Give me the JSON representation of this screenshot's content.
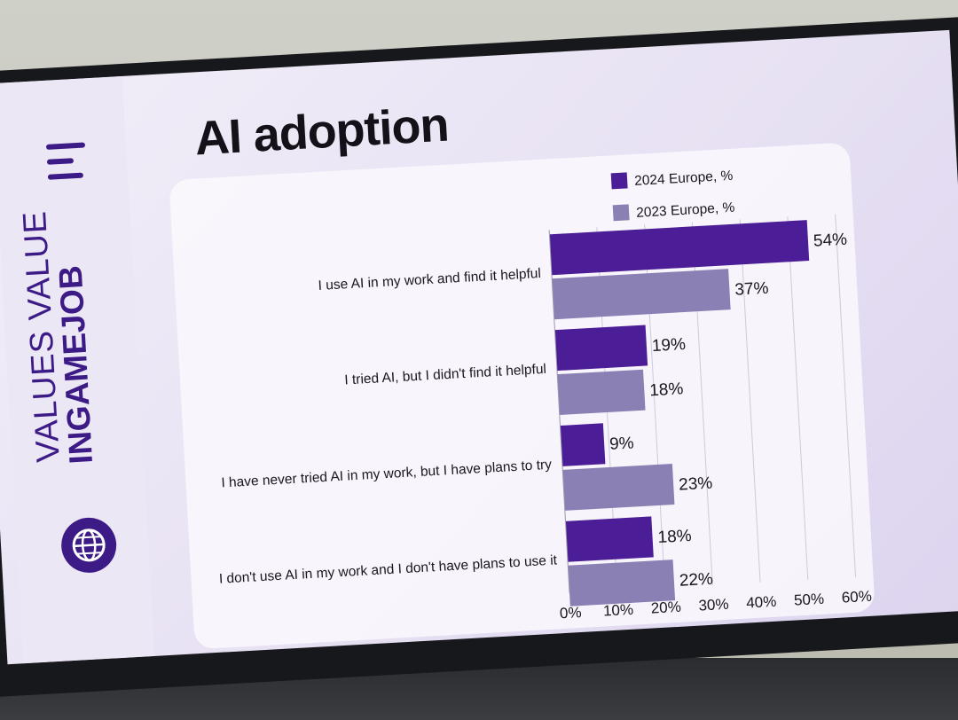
{
  "slide": {
    "title": "AI adoption"
  },
  "brand": {
    "line1": "VALUES VALUE",
    "line2": "INGAMEJOB"
  },
  "chart_data": {
    "type": "bar",
    "orientation": "horizontal",
    "title": "AI adoption",
    "categories": [
      "I use AI in my work and find it helpful",
      "I tried AI, but I didn't find it helpful",
      "I have never tried AI in my work, but I have plans to try",
      "I don't use AI in my work and I don't have plans to use it"
    ],
    "series": [
      {
        "name": "2024 Europe, %",
        "color": "#4b1d96",
        "values": [
          54,
          19,
          9,
          18
        ]
      },
      {
        "name": "2023 Europe, %",
        "color": "#8a80b4",
        "values": [
          37,
          18,
          23,
          22
        ]
      }
    ],
    "xlim": [
      0,
      60
    ],
    "xticks": [
      0,
      10,
      20,
      30,
      40,
      50,
      60
    ],
    "tick_suffix": "%",
    "value_suffix": "%",
    "grid": true,
    "legend": "top-right"
  }
}
